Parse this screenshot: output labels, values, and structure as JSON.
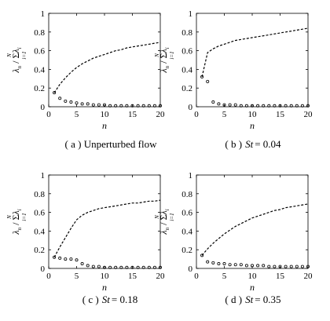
{
  "figure": {
    "panels": [
      {
        "id": "a",
        "caption_prefix": "( a ) Unperturbed flow",
        "caption_var": "",
        "caption_eq": ""
      },
      {
        "id": "b",
        "caption_prefix": "( b )",
        "caption_var": "St",
        "caption_eq": "= 0.04"
      },
      {
        "id": "c",
        "caption_prefix": "( c )",
        "caption_var": "St",
        "caption_eq": "= 0.18"
      },
      {
        "id": "d",
        "caption_prefix": "( d )",
        "caption_var": "St",
        "caption_eq": "= 0.35"
      }
    ]
  },
  "chart_data": [
    {
      "type": "scatter+line",
      "xlabel": "n",
      "ylabel": "λ_n / Σ_{i=1}^{N} λ_i",
      "xlim": [
        0,
        20
      ],
      "ylim": [
        0,
        1
      ],
      "xticks": [
        "0",
        "5",
        "10",
        "15",
        "20"
      ],
      "yticks": [
        "0",
        "0.2",
        "0.4",
        "0.6",
        "0.8",
        "1"
      ],
      "series": [
        {
          "style": "dashed-line",
          "x": [
            1,
            2,
            3,
            4,
            5,
            6,
            7,
            8,
            9,
            10,
            11,
            12,
            13,
            14,
            15,
            16,
            17,
            18,
            19,
            20
          ],
          "values": [
            0.15,
            0.24,
            0.31,
            0.37,
            0.42,
            0.46,
            0.49,
            0.52,
            0.54,
            0.56,
            0.58,
            0.6,
            0.61,
            0.63,
            0.64,
            0.65,
            0.66,
            0.67,
            0.68,
            0.69
          ]
        },
        {
          "style": "circle-markers",
          "x": [
            1,
            2,
            3,
            4,
            5,
            6,
            7,
            8,
            9,
            10,
            11,
            12,
            13,
            14,
            15,
            16,
            17,
            18,
            19,
            20
          ],
          "values": [
            0.15,
            0.09,
            0.06,
            0.05,
            0.04,
            0.03,
            0.03,
            0.02,
            0.02,
            0.02,
            0.01,
            0.01,
            0.01,
            0.01,
            0.01,
            0.01,
            0.01,
            0.01,
            0.01,
            0.01
          ]
        }
      ]
    },
    {
      "type": "scatter+line",
      "xlabel": "n",
      "ylabel": "λ_n / Σ_{i=1}^{N} λ_i",
      "xlim": [
        0,
        20
      ],
      "ylim": [
        0,
        1
      ],
      "xticks": [
        "0",
        "5",
        "10",
        "15",
        "20"
      ],
      "yticks": [
        "0",
        "0.2",
        "0.4",
        "0.6",
        "0.8",
        "1"
      ],
      "series": [
        {
          "style": "dashed-line",
          "x": [
            1,
            2,
            3,
            4,
            5,
            6,
            7,
            8,
            9,
            10,
            11,
            12,
            13,
            14,
            15,
            16,
            17,
            18,
            19,
            20
          ],
          "values": [
            0.32,
            0.58,
            0.62,
            0.65,
            0.67,
            0.69,
            0.71,
            0.72,
            0.73,
            0.74,
            0.75,
            0.76,
            0.77,
            0.78,
            0.79,
            0.8,
            0.81,
            0.82,
            0.83,
            0.84
          ]
        },
        {
          "style": "circle-markers",
          "x": [
            1,
            2,
            3,
            4,
            5,
            6,
            7,
            8,
            9,
            10,
            11,
            12,
            13,
            14,
            15,
            16,
            17,
            18,
            19,
            20
          ],
          "values": [
            0.32,
            0.27,
            0.05,
            0.03,
            0.02,
            0.02,
            0.02,
            0.01,
            0.01,
            0.01,
            0.01,
            0.01,
            0.01,
            0.01,
            0.01,
            0.01,
            0.01,
            0.01,
            0.01,
            0.01
          ]
        }
      ]
    },
    {
      "type": "scatter+line",
      "xlabel": "n",
      "ylabel": "λ_n / Σ_{i=1}^{N} λ_i",
      "xlim": [
        0,
        20
      ],
      "ylim": [
        0,
        1
      ],
      "xticks": [
        "0",
        "5",
        "10",
        "15",
        "20"
      ],
      "yticks": [
        "0",
        "0.2",
        "0.4",
        "0.6",
        "0.8",
        "1"
      ],
      "series": [
        {
          "style": "dashed-line",
          "x": [
            1,
            2,
            3,
            4,
            5,
            6,
            7,
            8,
            9,
            10,
            11,
            12,
            13,
            14,
            15,
            16,
            17,
            18,
            19,
            20
          ],
          "values": [
            0.12,
            0.23,
            0.33,
            0.43,
            0.52,
            0.57,
            0.6,
            0.62,
            0.64,
            0.65,
            0.66,
            0.67,
            0.68,
            0.69,
            0.7,
            0.7,
            0.71,
            0.72,
            0.72,
            0.73
          ]
        },
        {
          "style": "circle-markers",
          "x": [
            1,
            2,
            3,
            4,
            5,
            6,
            7,
            8,
            9,
            10,
            11,
            12,
            13,
            14,
            15,
            16,
            17,
            18,
            19,
            20
          ],
          "values": [
            0.12,
            0.11,
            0.1,
            0.1,
            0.09,
            0.05,
            0.03,
            0.02,
            0.02,
            0.01,
            0.01,
            0.01,
            0.01,
            0.01,
            0.01,
            0.01,
            0.01,
            0.01,
            0.01,
            0.01
          ]
        }
      ]
    },
    {
      "type": "scatter+line",
      "xlabel": "n",
      "ylabel": "λ_n / Σ_{i=1}^{N} λ_i",
      "xlim": [
        0,
        20
      ],
      "ylim": [
        0,
        1
      ],
      "xticks": [
        "0",
        "5",
        "10",
        "15",
        "20"
      ],
      "yticks": [
        "0",
        "0.2",
        "0.4",
        "0.6",
        "0.8",
        "1"
      ],
      "series": [
        {
          "style": "dashed-line",
          "x": [
            1,
            2,
            3,
            4,
            5,
            6,
            7,
            8,
            9,
            10,
            11,
            12,
            13,
            14,
            15,
            16,
            17,
            18,
            19,
            20
          ],
          "values": [
            0.14,
            0.21,
            0.27,
            0.32,
            0.37,
            0.41,
            0.45,
            0.48,
            0.51,
            0.54,
            0.56,
            0.58,
            0.6,
            0.62,
            0.63,
            0.65,
            0.66,
            0.67,
            0.68,
            0.69
          ]
        },
        {
          "style": "circle-markers",
          "x": [
            1,
            2,
            3,
            4,
            5,
            6,
            7,
            8,
            9,
            10,
            11,
            12,
            13,
            14,
            15,
            16,
            17,
            18,
            19,
            20
          ],
          "values": [
            0.14,
            0.07,
            0.06,
            0.05,
            0.05,
            0.04,
            0.04,
            0.04,
            0.03,
            0.03,
            0.03,
            0.03,
            0.02,
            0.02,
            0.02,
            0.02,
            0.02,
            0.02,
            0.02,
            0.02
          ]
        }
      ]
    }
  ]
}
